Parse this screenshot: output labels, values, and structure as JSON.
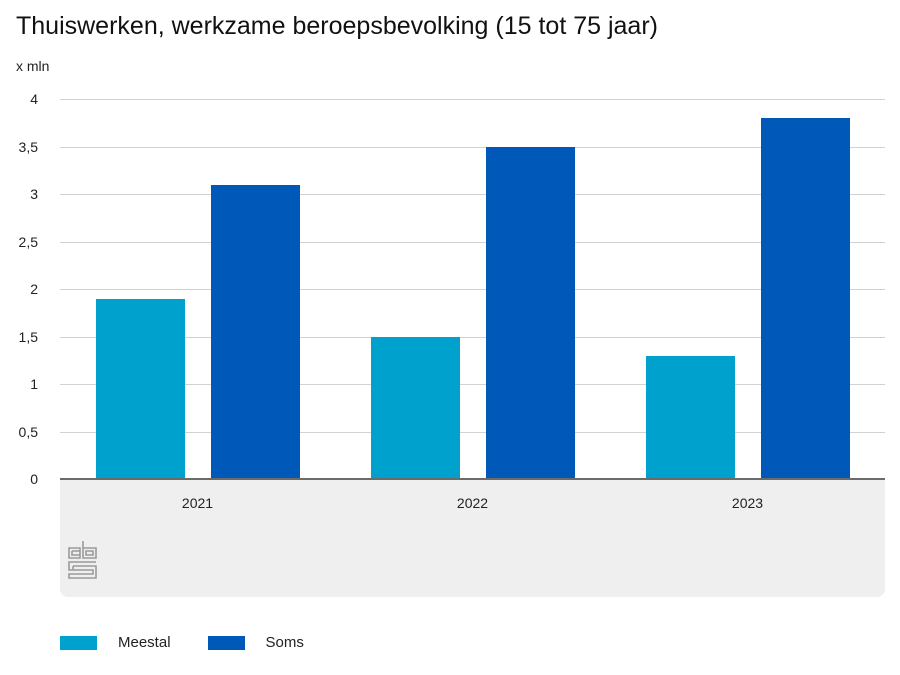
{
  "title": "Thuiswerken, werkzame beroepsbevolking (15 tot 75 jaar)",
  "unit_label": "x mln",
  "colors": {
    "meestal": "#00a1cd",
    "soms": "#0058b8",
    "grid": "#d2d2d2",
    "axis": "#6b6b6b",
    "panel": "#efefef"
  },
  "y_ticks": [
    "0",
    "0,5",
    "1",
    "1,5",
    "2",
    "2,5",
    "3",
    "3,5",
    "4"
  ],
  "x_ticks": [
    "2021",
    "2022",
    "2023"
  ],
  "legend": [
    {
      "label": "Meestal",
      "color": "#00a1cd"
    },
    {
      "label": "Soms",
      "color": "#0058b8"
    }
  ],
  "logo": "cbs-logo-icon",
  "chart_data": {
    "type": "bar",
    "title": "Thuiswerken, werkzame beroepsbevolking (15 tot 75 jaar)",
    "xlabel": "",
    "ylabel": "x mln",
    "categories": [
      "2021",
      "2022",
      "2023"
    ],
    "series": [
      {
        "name": "Meestal",
        "color": "#00a1cd",
        "values": [
          1.9,
          1.5,
          1.3
        ]
      },
      {
        "name": "Soms",
        "color": "#0058b8",
        "values": [
          3.1,
          3.5,
          3.8
        ]
      }
    ],
    "ylim": [
      0,
      4
    ],
    "yticks": [
      0,
      0.5,
      1,
      1.5,
      2,
      2.5,
      3,
      3.5,
      4
    ],
    "grid": true,
    "legend_position": "bottom-left"
  }
}
